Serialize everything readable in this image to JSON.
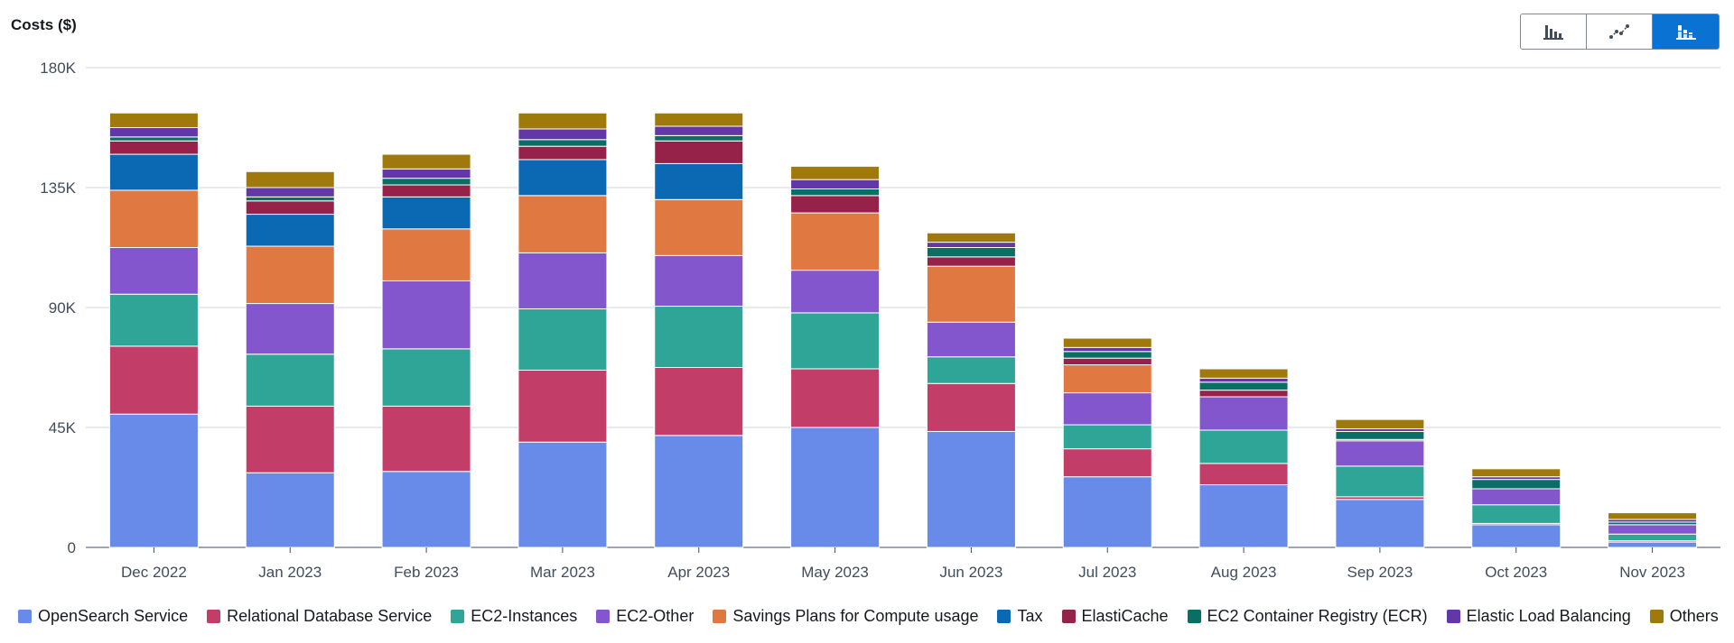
{
  "chart_data": {
    "type": "bar",
    "stacked": true,
    "title": "",
    "ylabel": "Costs ($)",
    "xlabel": "",
    "ylim": [
      0,
      180000
    ],
    "yticks": [
      0,
      45000,
      90000,
      135000,
      180000
    ],
    "ytick_labels": [
      "0",
      "45K",
      "90K",
      "135K",
      "180K"
    ],
    "grid": true,
    "legend_position": "bottom",
    "categories": [
      "Dec 2022",
      "Jan 2023",
      "Feb 2023",
      "Mar 2023",
      "Apr 2023",
      "May 2023",
      "Jun 2023",
      "Jul 2023",
      "Aug 2023",
      "Sep 2023",
      "Oct 2023",
      "Nov 2023"
    ],
    "series": [
      {
        "name": "OpenSearch Service",
        "color": "#688ae8",
        "values": [
          50000,
          28000,
          28500,
          39500,
          42000,
          45000,
          43500,
          26500,
          23500,
          18000,
          8500,
          2000
        ]
      },
      {
        "name": "Relational Database Service",
        "color": "#c33d69",
        "values": [
          25500,
          25000,
          24500,
          27000,
          25500,
          22000,
          18000,
          10500,
          8000,
          1000,
          500,
          500
        ]
      },
      {
        "name": "EC2-Instances",
        "color": "#2ea597",
        "values": [
          19500,
          19500,
          21500,
          23000,
          23000,
          21000,
          10000,
          9000,
          12500,
          11500,
          7000,
          2500
        ]
      },
      {
        "name": "EC2-Other",
        "color": "#8456ce",
        "values": [
          17500,
          19000,
          25500,
          21000,
          19000,
          16000,
          13000,
          12000,
          12500,
          9500,
          6000,
          3500
        ]
      },
      {
        "name": "Savings Plans for Compute usage",
        "color": "#e07941",
        "values": [
          21500,
          21500,
          19500,
          21500,
          21000,
          21500,
          21000,
          10500,
          0,
          0,
          0,
          0
        ]
      },
      {
        "name": "Tax",
        "color": "#0b68b3",
        "values": [
          13500,
          12000,
          12000,
          13500,
          13500,
          0,
          0,
          0,
          0,
          0,
          0,
          0
        ]
      },
      {
        "name": "ElastiCache",
        "color": "#962249",
        "values": [
          5000,
          5000,
          4500,
          5000,
          8500,
          6500,
          3500,
          2500,
          2500,
          500,
          0,
          0
        ]
      },
      {
        "name": "EC2 Container Registry (ECR)",
        "color": "#096f64",
        "values": [
          1500,
          1500,
          2500,
          2500,
          2000,
          2500,
          3500,
          2500,
          3000,
          3000,
          3500,
          1000
        ]
      },
      {
        "name": "Elastic Load Balancing",
        "color": "#6237a7",
        "values": [
          3500,
          3500,
          3500,
          4000,
          3500,
          3500,
          2000,
          1500,
          1500,
          1000,
          1000,
          1000
        ]
      },
      {
        "name": "Others",
        "color": "#a0790c",
        "values": [
          5500,
          6000,
          5500,
          6000,
          5000,
          5000,
          3500,
          3500,
          3500,
          3500,
          3000,
          2500
        ]
      }
    ]
  },
  "view_toggle": {
    "icons": [
      "bar-chart-icon",
      "line-chart-icon",
      "stacked-bar-chart-icon"
    ],
    "active": "stacked-bar-chart-icon"
  },
  "colors": {
    "gridline": "#d1d5db",
    "axis": "#414d5c",
    "toggle_active": "#0972d3"
  }
}
